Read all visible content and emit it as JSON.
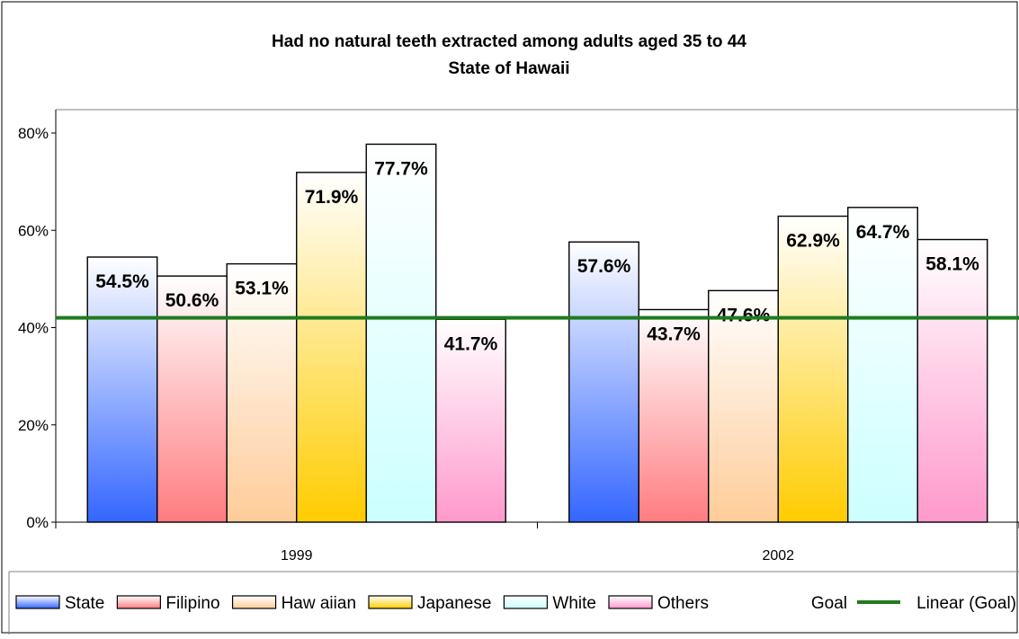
{
  "chart_data": {
    "type": "bar",
    "title": "Had no natural teeth extracted among adults aged 35 to 44",
    "subtitle": "State of Hawaii",
    "categories": [
      "1999",
      "2002"
    ],
    "yticks": [
      "0%",
      "20%",
      "40%",
      "60%",
      "80%"
    ],
    "ylim": [
      0,
      80
    ],
    "series": [
      {
        "name": "State",
        "values": [
          54.5,
          57.6
        ],
        "labels": [
          "54.5%",
          "57.6%"
        ],
        "color_top": "#ffffff",
        "color_bottom": "#3366ff"
      },
      {
        "name": "Filipino",
        "values": [
          50.6,
          43.7
        ],
        "labels": [
          "50.6%",
          "43.7%"
        ],
        "color_top": "#ffffff",
        "color_bottom": "#ff7c80"
      },
      {
        "name": "Haw aiian",
        "values": [
          53.1,
          47.6
        ],
        "labels": [
          "53.1%",
          "47.6%"
        ],
        "color_top": "#ffffff",
        "color_bottom": "#ffcc99"
      },
      {
        "name": "Japanese",
        "values": [
          71.9,
          62.9
        ],
        "labels": [
          "71.9%",
          "62.9%"
        ],
        "color_top": "#ffffff",
        "color_bottom": "#ffcc00"
      },
      {
        "name": "White",
        "values": [
          77.7,
          64.7
        ],
        "labels": [
          "77.7%",
          "64.7%"
        ],
        "color_top": "#ffffff",
        "color_bottom": "#ccffff"
      },
      {
        "name": "Others",
        "values": [
          41.7,
          58.1
        ],
        "labels": [
          "41.7%",
          "58.1%"
        ],
        "color_top": "#ffffff",
        "color_bottom": "#ff99cc"
      }
    ],
    "goal": {
      "value": 42,
      "color": "#1e7b1e"
    },
    "legend_goal": "Goal",
    "legend_linear": "Linear (Goal)",
    "legend_position": "bottom",
    "grid": false
  }
}
